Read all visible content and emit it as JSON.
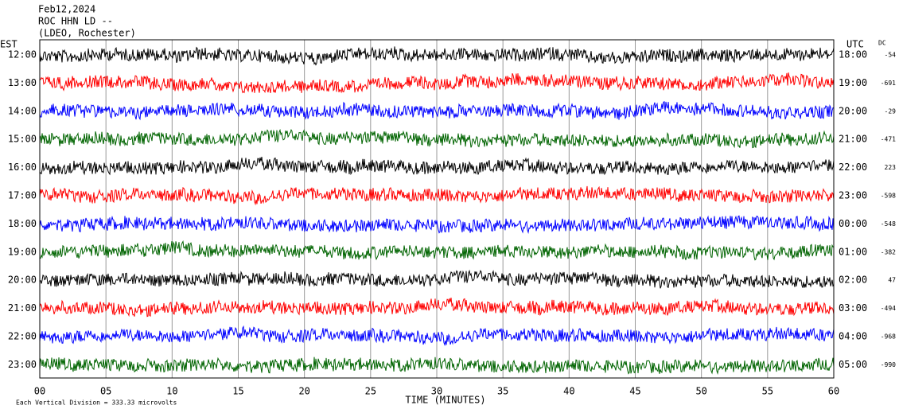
{
  "header": [
    "Feb12,2024",
    "ROC HHN LD --",
    "(LDEO, Rochester)"
  ],
  "left_label": "EST",
  "right_label": "UTC",
  "dc_label": "DC",
  "rows": [
    {
      "est": "12:00",
      "utc": "18:00",
      "dc": -54,
      "color": "#000000"
    },
    {
      "est": "13:00",
      "utc": "19:00",
      "dc": -691,
      "color": "#ff0000"
    },
    {
      "est": "14:00",
      "utc": "20:00",
      "dc": -29,
      "color": "#0000ff"
    },
    {
      "est": "15:00",
      "utc": "21:00",
      "dc": -471,
      "color": "#006400"
    },
    {
      "est": "16:00",
      "utc": "22:00",
      "dc": 223,
      "color": "#000000"
    },
    {
      "est": "17:00",
      "utc": "23:00",
      "dc": -598,
      "color": "#ff0000"
    },
    {
      "est": "18:00",
      "utc": "00:00",
      "dc": -548,
      "color": "#0000ff"
    },
    {
      "est": "19:00",
      "utc": "01:00",
      "dc": -382,
      "color": "#006400"
    },
    {
      "est": "20:00",
      "utc": "02:00",
      "dc": 47,
      "color": "#000000"
    },
    {
      "est": "21:00",
      "utc": "03:00",
      "dc": -494,
      "color": "#ff0000"
    },
    {
      "est": "22:00",
      "utc": "04:00",
      "dc": -968,
      "color": "#0000ff"
    },
    {
      "est": "23:00",
      "utc": "05:00",
      "dc": -990,
      "color": "#006400"
    }
  ],
  "x_ticks": [
    "00",
    "05",
    "10",
    "15",
    "20",
    "25",
    "30",
    "35",
    "40",
    "45",
    "50",
    "55",
    "60"
  ],
  "x_title": "TIME (MINUTES)",
  "footer": "Each Vertical Division =  333.33 microvolts"
}
